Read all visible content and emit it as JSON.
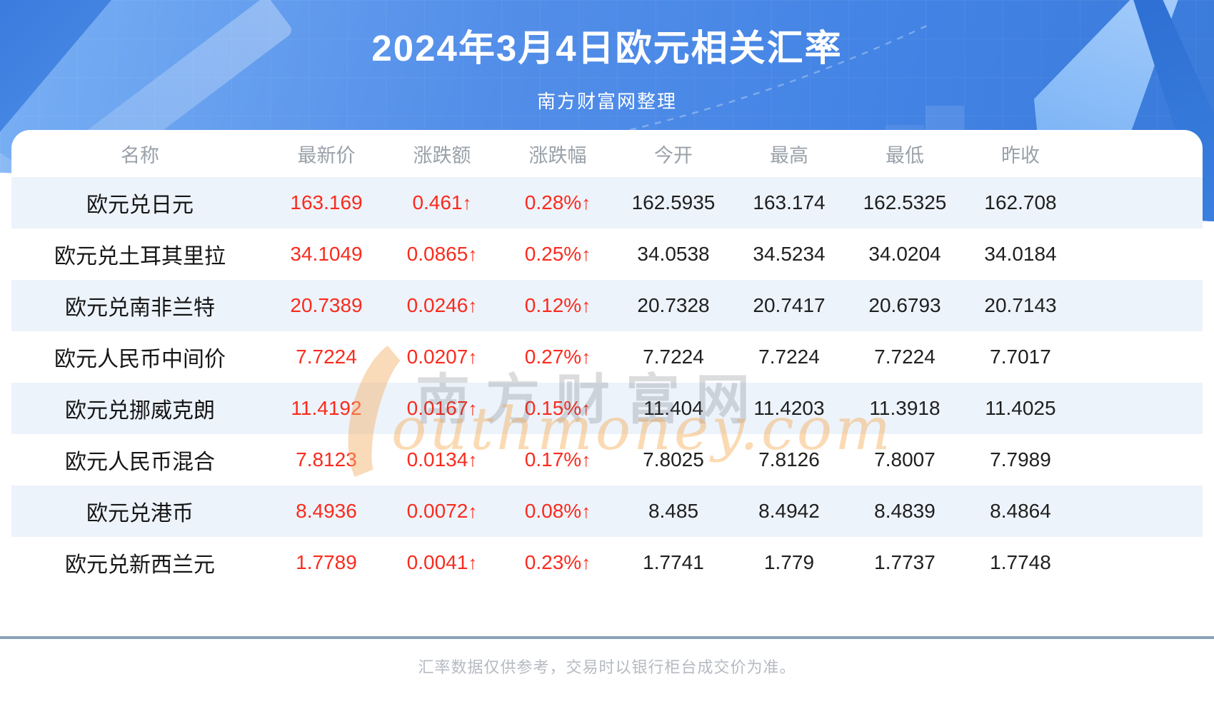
{
  "header": {
    "title": "2024年3月4日欧元相关汇率",
    "subtitle": "南方财富网整理"
  },
  "table": {
    "columns": [
      "名称",
      "最新价",
      "涨跌额",
      "涨跌幅",
      "今开",
      "最高",
      "最低",
      "昨收"
    ],
    "up_arrow": "↑",
    "rows": [
      {
        "name": "欧元兑日元",
        "latest": "163.169",
        "change": "0.461",
        "change_pct": "0.28%",
        "open": "162.5935",
        "high": "163.174",
        "low": "162.5325",
        "prev_close": "162.708"
      },
      {
        "name": "欧元兑土耳其里拉",
        "latest": "34.1049",
        "change": "0.0865",
        "change_pct": "0.25%",
        "open": "34.0538",
        "high": "34.5234",
        "low": "34.0204",
        "prev_close": "34.0184"
      },
      {
        "name": "欧元兑南非兰特",
        "latest": "20.7389",
        "change": "0.0246",
        "change_pct": "0.12%",
        "open": "20.7328",
        "high": "20.7417",
        "low": "20.6793",
        "prev_close": "20.7143"
      },
      {
        "name": "欧元人民币中间价",
        "latest": "7.7224",
        "change": "0.0207",
        "change_pct": "0.27%",
        "open": "7.7224",
        "high": "7.7224",
        "low": "7.7224",
        "prev_close": "7.7017"
      },
      {
        "name": "欧元兑挪威克朗",
        "latest": "11.4192",
        "change": "0.0167",
        "change_pct": "0.15%",
        "open": "11.404",
        "high": "11.4203",
        "low": "11.3918",
        "prev_close": "11.4025"
      },
      {
        "name": "欧元人民币混合",
        "latest": "7.8123",
        "change": "0.0134",
        "change_pct": "0.17%",
        "open": "7.8025",
        "high": "7.8126",
        "low": "7.8007",
        "prev_close": "7.7989"
      },
      {
        "name": "欧元兑港币",
        "latest": "8.4936",
        "change": "0.0072",
        "change_pct": "0.08%",
        "open": "8.485",
        "high": "8.4942",
        "low": "8.4839",
        "prev_close": "8.4864"
      },
      {
        "name": "欧元兑新西兰元",
        "latest": "1.7789",
        "change": "0.0041",
        "change_pct": "0.23%",
        "open": "1.7741",
        "high": "1.779",
        "low": "1.7737",
        "prev_close": "1.7748"
      }
    ]
  },
  "watermark": {
    "cn": "南方财富网",
    "en": "outhmoney.com"
  },
  "footer": {
    "disclaimer": "汇率数据仅供参考，交易时以银行柜台成交价为准。"
  },
  "colors": {
    "hero_blue": "#4a8ce9",
    "up_red": "#f92b1e",
    "row_stripe": "#edf3fb",
    "divider": "#8aa2b8",
    "header_text_gray": "#9aa1a9",
    "footer_text_gray": "#b5bac1"
  }
}
